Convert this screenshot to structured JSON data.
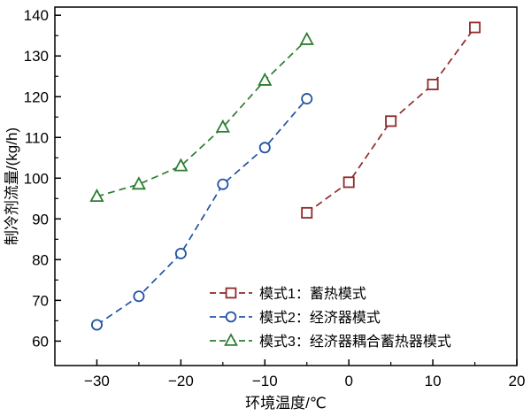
{
  "chart_data": {
    "type": "line",
    "title": "",
    "xlabel": "环境温度/℃",
    "ylabel": "制冷剂流量/(kg/h)",
    "xlim": [
      -35,
      20
    ],
    "ylim": [
      54,
      142
    ],
    "xticks": [
      -30,
      -20,
      -10,
      0,
      10,
      20
    ],
    "minor_xticks": [
      -25,
      -15,
      -5,
      5,
      15
    ],
    "yticks": [
      60,
      70,
      80,
      90,
      100,
      110,
      120,
      130,
      140
    ],
    "minor_yticks": [
      65,
      75,
      85,
      95,
      105,
      115,
      125,
      135
    ],
    "grid": false,
    "legend_position": "inside-bottom-right",
    "frame_color": "#000000",
    "line_style": "dashed",
    "series": [
      {
        "name": "模式1：蓄热模式",
        "marker": "square",
        "color": "#8f2a2a",
        "x": [
          -5,
          0,
          5,
          10,
          15
        ],
        "y": [
          91.5,
          99,
          114,
          123,
          137
        ]
      },
      {
        "name": "模式2：经济器模式",
        "marker": "circle",
        "color": "#2353a4",
        "x": [
          -30,
          -25,
          -20,
          -15,
          -10,
          -5
        ],
        "y": [
          64,
          71,
          81.5,
          98.5,
          107.5,
          119.5
        ]
      },
      {
        "name": "模式3：经济器耦合蓄热器模式",
        "marker": "triangle",
        "color": "#2e7d32",
        "x": [
          -30,
          -25,
          -20,
          -15,
          -10,
          -5
        ],
        "y": [
          95.5,
          98.5,
          103,
          112.5,
          124,
          134
        ]
      }
    ]
  }
}
